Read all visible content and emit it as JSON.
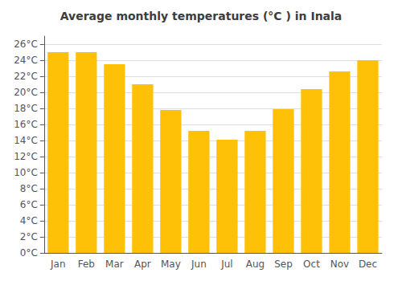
{
  "chart_data": {
    "type": "bar",
    "title": "Average monthly temperatures (°C ) in Inala",
    "categories": [
      "Jan",
      "Feb",
      "Mar",
      "Apr",
      "May",
      "Jun",
      "Jul",
      "Aug",
      "Sep",
      "Oct",
      "Nov",
      "Dec"
    ],
    "values": [
      25.0,
      25.0,
      23.5,
      21.0,
      17.8,
      15.2,
      14.1,
      15.2,
      17.9,
      20.4,
      22.6,
      24.0
    ],
    "color": "#FFC107",
    "ylim": [
      0,
      27
    ],
    "yticks": [
      {
        "value": 0,
        "label": "0°C"
      },
      {
        "value": 2,
        "label": "2°C"
      },
      {
        "value": 4,
        "label": "4°C"
      },
      {
        "value": 6,
        "label": "6°C"
      },
      {
        "value": 8,
        "label": "8°C"
      },
      {
        "value": 10,
        "label": "10°C"
      },
      {
        "value": 12,
        "label": "12°C"
      },
      {
        "value": 14,
        "label": "14°C"
      },
      {
        "value": 16,
        "label": "16°C"
      },
      {
        "value": 18,
        "label": "18°C"
      },
      {
        "value": 20,
        "label": "20°C"
      },
      {
        "value": 22,
        "label": "22°C"
      },
      {
        "value": 24,
        "label": "24°C"
      },
      {
        "value": 26,
        "label": "26°C"
      }
    ],
    "grid": true
  }
}
